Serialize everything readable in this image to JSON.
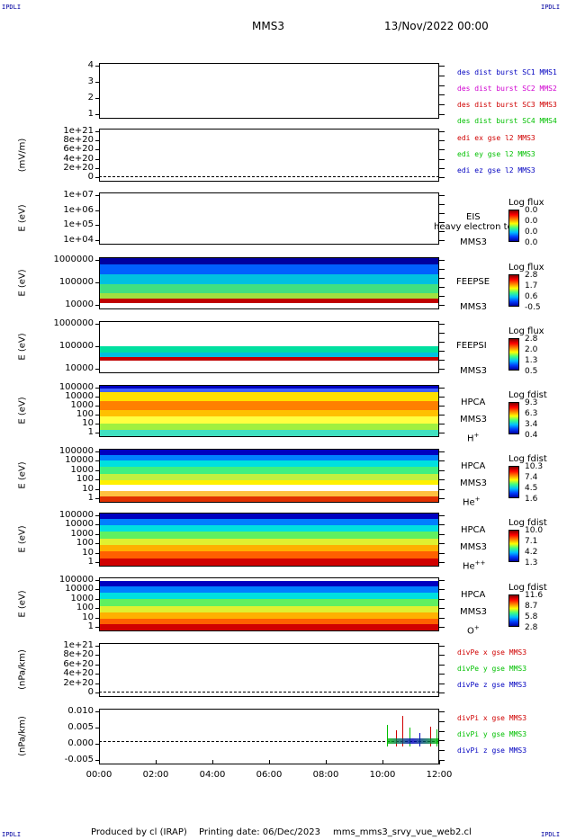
{
  "corners": {
    "tl": "IPDLI",
    "tr": "IPDLI",
    "bl": "IPDLI",
    "br": "IPDLI"
  },
  "header": {
    "spacecraft": "MMS3",
    "date": "13/Nov/2022 00:00"
  },
  "footer": {
    "produced": "Produced by cl (IRAP)",
    "printing": "Printing date: 06/Dec/2023",
    "file": "mms_mms3_srvy_vue_web2.cl"
  },
  "colors": {
    "red": "#d00000",
    "green": "#00c000",
    "blue": "#0000c0",
    "magenta": "#d000d0",
    "black": "#000000"
  },
  "chart_data": {
    "type": "table",
    "x_axis": {
      "ticks": [
        "00:00",
        "02:00",
        "04:00",
        "06:00",
        "08:00",
        "10:00",
        "12:00"
      ]
    },
    "panels": [
      {
        "id": "p1",
        "ylabel": "",
        "yticks": [
          "4",
          "3",
          "2",
          "1"
        ],
        "legend": [
          {
            "text": "des dist burst SC1 MMS1",
            "color": "#0000c0"
          },
          {
            "text": "des dist burst SC2 MMS2",
            "color": "#d000d0"
          },
          {
            "text": "des dist burst SC3 MMS3",
            "color": "#d00000"
          },
          {
            "text": "des dist burst SC4 MMS4",
            "color": "#00c000"
          }
        ]
      },
      {
        "id": "p2",
        "ylabel": "(mV/m)",
        "yticks": [
          "1e+21",
          "8e+20",
          "6e+20",
          "4e+20",
          "2e+20",
          "0"
        ],
        "legend": [
          {
            "text": "edi ex gse l2 MMS3",
            "color": "#d00000"
          },
          {
            "text": "edi ey gse l2 MMS3",
            "color": "#00c000"
          },
          {
            "text": "edi ez gse l2 MMS3",
            "color": "#0000c0"
          }
        ]
      },
      {
        "id": "p3",
        "ylabel": "E (eV)",
        "yticks": [
          "1e+07",
          "1e+06",
          "1e+05",
          "1e+04"
        ],
        "instrument": "EIS",
        "sc": "MMS3",
        "overlay": "heavy electron to",
        "cbar": {
          "title": "Log flux",
          "ticks": [
            "0.0",
            "0.0",
            "0.0",
            "0.0"
          ]
        }
      },
      {
        "id": "p4",
        "ylabel": "E (eV)",
        "yticks": [
          "1000000",
          "100000",
          "10000"
        ],
        "instrument": "FEEPSE",
        "sc": "MMS3",
        "cbar": {
          "title": "Log flux",
          "ticks": [
            "2.8",
            "1.7",
            "0.6",
            "-0.5"
          ]
        }
      },
      {
        "id": "p5",
        "ylabel": "E (eV)",
        "yticks": [
          "1000000",
          "100000",
          "10000"
        ],
        "instrument": "FEEPSI",
        "sc": "MMS3",
        "cbar": {
          "title": "Log flux",
          "ticks": [
            "2.8",
            "2.0",
            "1.3",
            "0.5"
          ]
        }
      },
      {
        "id": "p6",
        "ylabel": "E (eV)",
        "yticks": [
          "100000",
          "10000",
          "1000",
          "100",
          "10",
          "1"
        ],
        "instrument": "HPCA",
        "sc": "MMS3",
        "species": "H",
        "charge": "+",
        "cbar": {
          "title": "Log fdist",
          "ticks": [
            "9.3",
            "6.3",
            "3.4",
            "0.4"
          ]
        }
      },
      {
        "id": "p7",
        "ylabel": "E (eV)",
        "yticks": [
          "100000",
          "10000",
          "1000",
          "100",
          "10",
          "1"
        ],
        "instrument": "HPCA",
        "sc": "MMS3",
        "species": "He",
        "charge": "+",
        "cbar": {
          "title": "Log fdist",
          "ticks": [
            "10.3",
            "7.4",
            "4.5",
            "1.6"
          ]
        }
      },
      {
        "id": "p8",
        "ylabel": "E (eV)",
        "yticks": [
          "100000",
          "10000",
          "1000",
          "100",
          "10",
          "1"
        ],
        "instrument": "HPCA",
        "sc": "MMS3",
        "species": "He",
        "charge": "++",
        "cbar": {
          "title": "Log fdist",
          "ticks": [
            "10.0",
            "7.1",
            "4.2",
            "1.3"
          ]
        }
      },
      {
        "id": "p9",
        "ylabel": "E (eV)",
        "yticks": [
          "100000",
          "10000",
          "1000",
          "100",
          "10",
          "1"
        ],
        "instrument": "HPCA",
        "sc": "MMS3",
        "species": "O",
        "charge": "+",
        "cbar": {
          "title": "Log fdist",
          "ticks": [
            "11.6",
            "8.7",
            "5.8",
            "2.8"
          ]
        }
      },
      {
        "id": "p10",
        "ylabel": "(nPa/km)",
        "yticks": [
          "1e+21",
          "8e+20",
          "6e+20",
          "4e+20",
          "2e+20",
          "0"
        ],
        "legend": [
          {
            "text": "divPe x gse MMS3",
            "color": "#d00000"
          },
          {
            "text": "divPe y gse MMS3",
            "color": "#00c000"
          },
          {
            "text": "divPe z gse MMS3",
            "color": "#0000c0"
          }
        ]
      },
      {
        "id": "p11",
        "ylabel": "(nPa/km)",
        "yticks": [
          "0.010",
          "0.005",
          "0.000",
          "-0.005"
        ],
        "legend": [
          {
            "text": "divPi x gse MMS3",
            "color": "#d00000"
          },
          {
            "text": "divPi y gse MMS3",
            "color": "#00c000"
          },
          {
            "text": "divPi z gse MMS3",
            "color": "#0000c0"
          }
        ]
      }
    ]
  }
}
